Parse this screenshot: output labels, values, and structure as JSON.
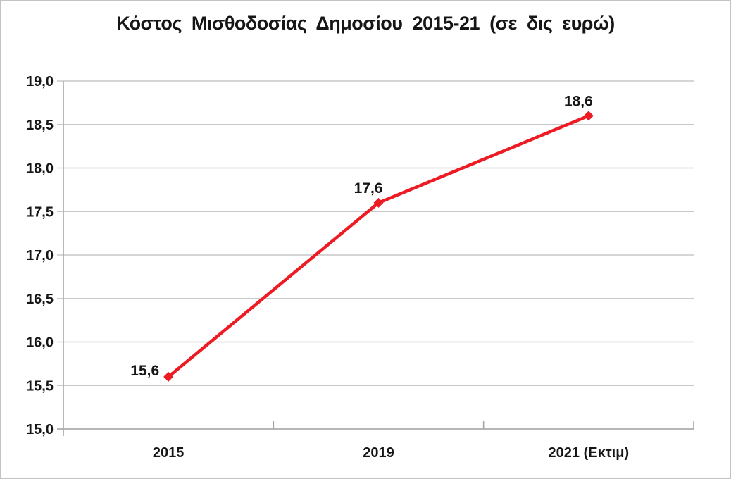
{
  "chart_data": {
    "type": "line",
    "title": "Κόστος Μισθοδοσίας Δημοσίου 2015-21 (σε δις ευρώ)",
    "categories": [
      "2015",
      "2019",
      "2021 (Εκτιμ)"
    ],
    "values": [
      15.6,
      17.6,
      18.6
    ],
    "value_labels": [
      "15,6",
      "17,6",
      "18,6"
    ],
    "ylim": [
      15.0,
      19.0
    ],
    "y_tick_step": 0.5,
    "y_tick_labels": [
      "15,0",
      "15,5",
      "16,0",
      "16,5",
      "17,0",
      "17,5",
      "18,0",
      "18,5",
      "19,0"
    ],
    "xlabel": "",
    "ylabel": "",
    "grid": true,
    "legend": "none",
    "line_color": "#ed1c24",
    "grid_color": "#c9c9c9",
    "axis_color": "#a6a6a6",
    "text_color": "#161616"
  }
}
